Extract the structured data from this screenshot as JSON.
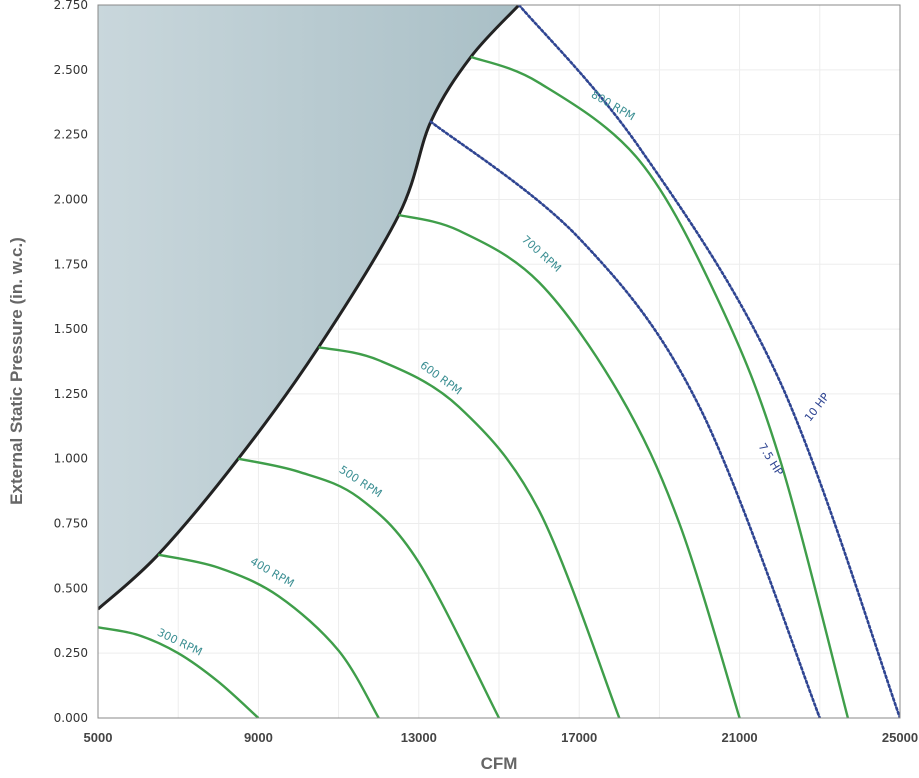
{
  "chart_data": {
    "type": "line",
    "xlabel": "CFM",
    "ylabel": "External Static Pressure (in. w.c.)",
    "xlim": [
      5000,
      25000
    ],
    "ylim": [
      0,
      2.75
    ],
    "x_ticks": [
      "5000",
      "9000",
      "13000",
      "17000",
      "21000",
      "25000"
    ],
    "y_ticks": [
      "0.000",
      "0.250",
      "0.500",
      "0.750",
      "1.000",
      "1.250",
      "1.500",
      "1.750",
      "2.000",
      "2.250",
      "2.500",
      "2.750"
    ],
    "grid": true,
    "colors": {
      "rpm": "#3f9e4a",
      "hp": "#2f4592",
      "shaded": "#a9bfc6",
      "boundary": "#222222"
    },
    "shaded_region_boundary": [
      [
        5000,
        0.42
      ],
      [
        6500,
        0.63
      ],
      [
        8500,
        1.0
      ],
      [
        10500,
        1.43
      ],
      [
        12500,
        1.94
      ],
      [
        13300,
        2.3
      ],
      [
        14300,
        2.55
      ],
      [
        15500,
        2.75
      ]
    ],
    "rpm_curves": [
      {
        "name": "300 RPM",
        "label_x": 7000,
        "label_y": 0.28,
        "label_angle": 26,
        "points": [
          [
            5000,
            0.35
          ],
          [
            6000,
            0.32
          ],
          [
            7000,
            0.25
          ],
          [
            8000,
            0.14
          ],
          [
            9000,
            0.0
          ]
        ]
      },
      {
        "name": "400 RPM",
        "label_x": 9300,
        "label_y": 0.55,
        "label_angle": 30,
        "points": [
          [
            6500,
            0.63
          ],
          [
            8000,
            0.58
          ],
          [
            9500,
            0.47
          ],
          [
            11000,
            0.26
          ],
          [
            12000,
            0.0
          ]
        ]
      },
      {
        "name": "500 RPM",
        "label_x": 11500,
        "label_y": 0.9,
        "label_angle": 33,
        "points": [
          [
            8500,
            1.0
          ],
          [
            10000,
            0.95
          ],
          [
            11500,
            0.85
          ],
          [
            13000,
            0.6
          ],
          [
            15000,
            0.0
          ]
        ]
      },
      {
        "name": "600 RPM",
        "label_x": 13500,
        "label_y": 1.3,
        "label_angle": 36,
        "points": [
          [
            10500,
            1.43
          ],
          [
            12000,
            1.38
          ],
          [
            14000,
            1.2
          ],
          [
            16000,
            0.8
          ],
          [
            18000,
            0.0
          ]
        ]
      },
      {
        "name": "700 RPM",
        "label_x": 16000,
        "label_y": 1.78,
        "label_angle": 42,
        "points": [
          [
            12500,
            1.94
          ],
          [
            14000,
            1.88
          ],
          [
            16000,
            1.68
          ],
          [
            18000,
            1.25
          ],
          [
            19500,
            0.75
          ],
          [
            21000,
            0.0
          ]
        ]
      },
      {
        "name": "800 RPM",
        "label_x": 17800,
        "label_y": 2.35,
        "label_angle": 30,
        "points": [
          [
            14300,
            2.55
          ],
          [
            16000,
            2.45
          ],
          [
            18500,
            2.15
          ],
          [
            20500,
            1.6
          ],
          [
            22000,
            1.0
          ],
          [
            23700,
            0.0
          ]
        ]
      }
    ],
    "hp_lines": [
      {
        "name": "7.5 HP",
        "label_x": 21700,
        "label_y": 0.99,
        "label_angle": 58,
        "points": [
          [
            13300,
            2.3
          ],
          [
            17000,
            1.85
          ],
          [
            20000,
            1.2
          ],
          [
            23000,
            0.0
          ]
        ]
      },
      {
        "name": "10 HP",
        "label_x": 23000,
        "label_y": 1.19,
        "label_angle": -52,
        "points": [
          [
            15500,
            2.75
          ],
          [
            18500,
            2.2
          ],
          [
            22000,
            1.3
          ],
          [
            25000,
            0.0
          ]
        ]
      }
    ]
  }
}
